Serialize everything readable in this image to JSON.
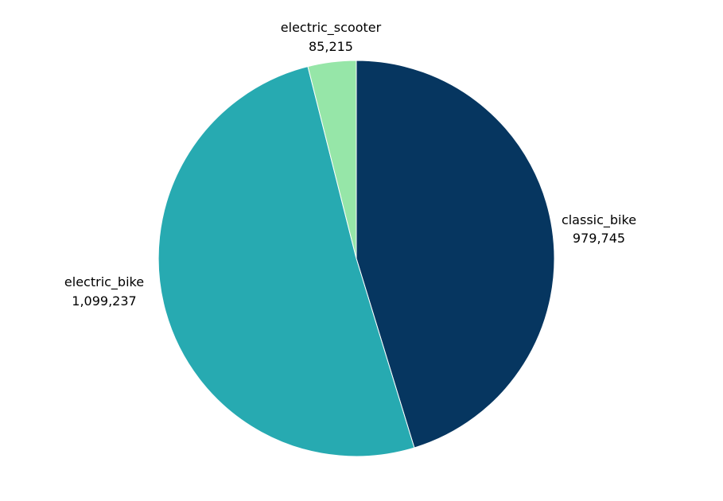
{
  "chart_data": {
    "type": "pie",
    "title": "",
    "start_angle_deg": 0,
    "direction": "clockwise",
    "slices": [
      {
        "name": "classic_bike",
        "value": 979745,
        "value_label": "979,745",
        "color": "#063660"
      },
      {
        "name": "electric_bike",
        "value": 1099237,
        "value_label": "1,099,237",
        "color": "#27AAB1"
      },
      {
        "name": "electric_scooter",
        "value": 85215,
        "value_label": "85,215",
        "color": "#96E6A8"
      }
    ]
  }
}
